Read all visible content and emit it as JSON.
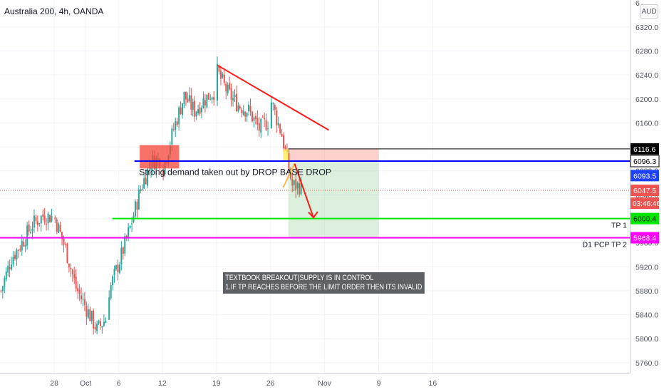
{
  "symbol": "Australia 200, 4h, OANDA",
  "currency": "AUD",
  "colors": {
    "up": "#26a69a",
    "down": "#ef5350",
    "grid": "#f0f3fa",
    "axis_text": "#50535e"
  },
  "chart_data": {
    "type": "candlestick",
    "title": "Australia 200, 4h, OANDA",
    "ylim": [
      5742,
      6365
    ],
    "y_ticks": [
      5760,
      5800,
      5840,
      5880,
      5920,
      5960,
      6000,
      6040,
      6080,
      6120,
      6160,
      6200,
      6240,
      6280,
      6320
    ],
    "y_tick_labels": [
      "5760.0",
      "5800.0",
      "5840.0",
      "5880.0",
      "5920.0",
      "5960.0",
      "6000.0",
      "6040.0",
      "6080.0",
      "6120.0",
      "6160.0",
      "6200.0",
      "6240.0",
      "6280.0",
      "6320.0"
    ],
    "top_tick_label": "6",
    "x_ticks": [
      "28",
      "Oct",
      "6",
      "12",
      "19",
      "26",
      "Nov",
      "9",
      "16"
    ],
    "price_anchors": [
      [
        "Sep 21",
        5880
      ],
      [
        "Sep 22",
        5935
      ],
      [
        "Sep 23",
        5960
      ],
      [
        "Sep 24",
        5990
      ],
      [
        "Sep 25",
        6005
      ],
      [
        "Sep 28",
        6000
      ],
      [
        "Sep 29",
        5950
      ],
      [
        "Sep 30",
        5885
      ],
      [
        "Oct 1",
        5850
      ],
      [
        "Oct 2",
        5815
      ],
      [
        "Oct 5",
        5880
      ],
      [
        "Oct 6",
        5930
      ],
      [
        "Oct 7",
        5985
      ],
      [
        "Oct 8",
        6050
      ],
      [
        "Oct 9",
        6095
      ],
      [
        "Oct 10",
        6100
      ],
      [
        "Oct 12",
        6085
      ],
      [
        "Oct 13",
        6150
      ],
      [
        "Oct 14",
        6205
      ],
      [
        "Oct 15",
        6180
      ],
      [
        "Oct 16",
        6200
      ],
      [
        "Oct 19",
        6245
      ],
      [
        "Oct 20",
        6210
      ],
      [
        "Oct 21",
        6190
      ],
      [
        "Oct 22",
        6180
      ],
      [
        "Oct 23",
        6150
      ],
      [
        "Oct 26",
        6195
      ],
      [
        "Oct 27",
        6140
      ],
      [
        "Oct 28",
        6055
      ]
    ],
    "levels": [
      {
        "value": 6116.6,
        "label": "6116.6",
        "color": "#000000"
      },
      {
        "value": 6096.3,
        "label": "6096.3",
        "color": "#0000ff"
      },
      {
        "value": 6093.5,
        "label": "6093.5",
        "color": "#1e40ff"
      },
      {
        "value": 6047.5,
        "label": "6047.5",
        "color": "#ef5350"
      },
      {
        "value": 6000.4,
        "label": "6000.4",
        "color": "#00e600",
        "name": "TP 1"
      },
      {
        "value": 5968.4,
        "label": "5968.4",
        "color": "#ff00ff",
        "name": "D1 PCP TP 2"
      }
    ],
    "countdown": "03:46:46",
    "annotations": {
      "demand_text": "Strong demand taken out by DROP BASE DROP",
      "note_lines": [
        "TEXTBOOK BREAKOUT(SUPPLY IS IN CONTROL",
        "1.IF TP REACHES BEFORE THE LIMIT ORDER THEN ITS INVALID"
      ]
    }
  }
}
